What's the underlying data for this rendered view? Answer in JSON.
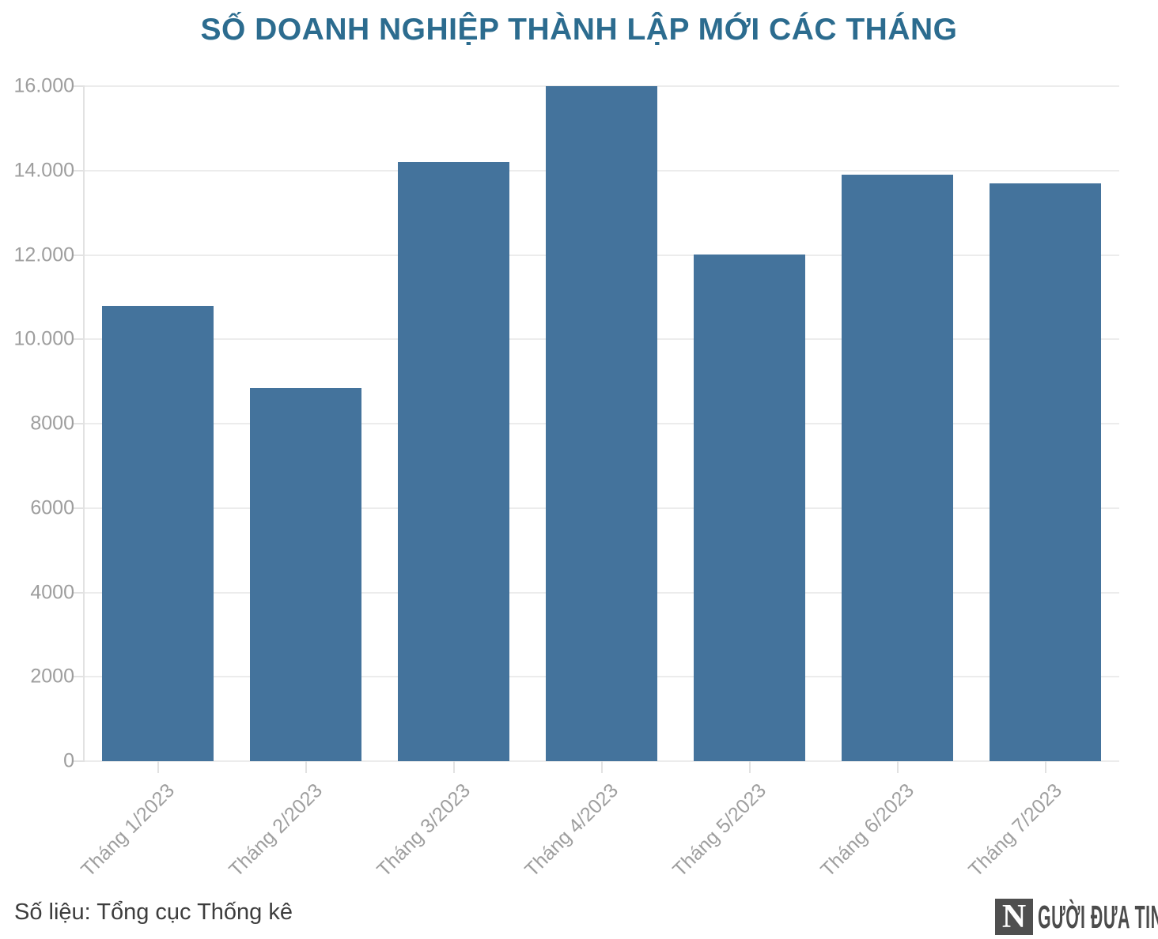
{
  "chart_data": {
    "type": "bar",
    "title": "SỐ DOANH NGHIỆP THÀNH LẬP MỚI CÁC THÁNG",
    "source": "Số liệu: Tổng cục Thống kê",
    "categories": [
      "Tháng 1/2023",
      "Tháng 2/2023",
      "Tháng 3/2023",
      "Tháng 4/2023",
      "Tháng 5/2023",
      "Tháng 6/2023",
      "Tháng 7/2023"
    ],
    "values": [
      10800,
      8841,
      14200,
      16000,
      12000,
      13900,
      13700
    ],
    "xlabel": "",
    "ylabel": "",
    "ylim": [
      0,
      16000
    ],
    "ytick_step": 2000,
    "ytick_labels": [
      "0",
      "2000",
      "4000",
      "6000",
      "8000",
      "10.000",
      "12.000",
      "14.000",
      "16.000"
    ],
    "grid": true,
    "legend": "none"
  },
  "style": {
    "background": "#ffffff",
    "title_color": "#2c6c8f",
    "bar_color": "#44739c",
    "grid_color": "#ececec",
    "axis_color": "#e2e2e2",
    "tick_label_color": "#9e9e9e",
    "source_color": "#3d3d3d",
    "logo_color": "#4c4c4c",
    "logo_n_background": "#4f4f4f",
    "logo_n_color": "#ffffff"
  },
  "branding": {
    "logo_initial": "N",
    "logo_text": "GƯỜI ĐƯA TIN"
  }
}
